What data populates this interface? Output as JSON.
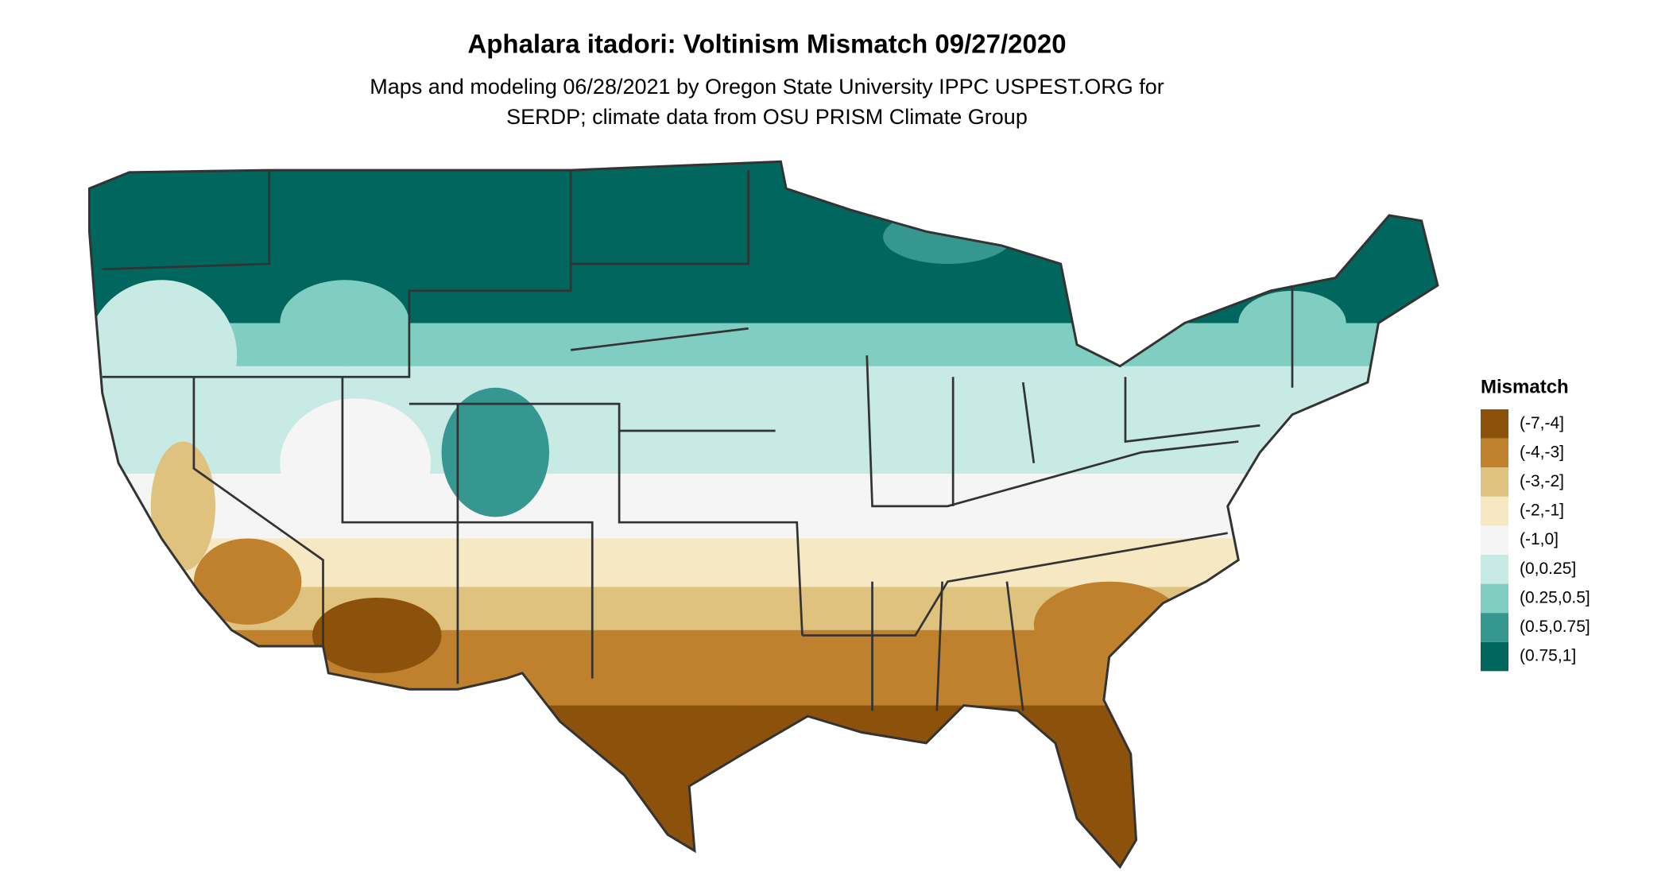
{
  "header": {
    "title": "Aphalara itadori: Voltinism Mismatch 09/27/2020",
    "subtitle": [
      "Maps and modeling 06/28/2021 by Oregon State University IPPC USPEST.ORG for",
      "SERDP; climate data from OSU PRISM Climate Group"
    ]
  },
  "legend": {
    "title": "Mismatch",
    "items": [
      {
        "label": "(-7,-4]",
        "color": "#8c510a"
      },
      {
        "label": "(-4,-3]",
        "color": "#bf812d"
      },
      {
        "label": "(-3,-2]",
        "color": "#dfc27d"
      },
      {
        "label": "(-2,-1]",
        "color": "#f6e8c3"
      },
      {
        "label": "(-1,0]",
        "color": "#f5f5f5"
      },
      {
        "label": "(0,0.25]",
        "color": "#c7eae5"
      },
      {
        "label": "(0.25,0.5]",
        "color": "#80cdc1"
      },
      {
        "label": "(0.5,0.75]",
        "color": "#35978f"
      },
      {
        "label": "(0.75,1]",
        "color": "#01665e"
      }
    ]
  }
}
